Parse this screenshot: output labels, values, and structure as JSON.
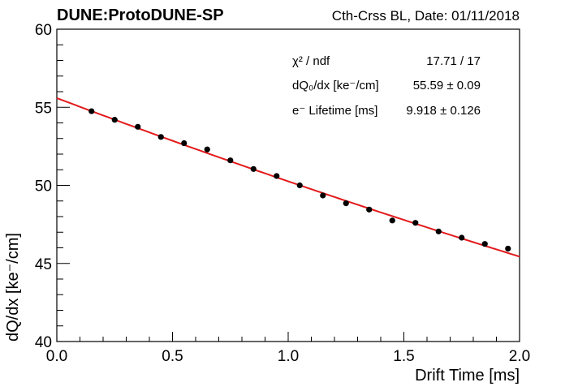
{
  "chart_data": {
    "type": "scatter",
    "title": "DUNE:ProtoDUNE-SP",
    "subtitle": "Cth-Crss BL, Date: 01/11/2018",
    "xlabel": "Drift Time [ms]",
    "ylabel": "dQ/dx [ke⁻/cm]",
    "xlim": [
      0.0,
      2.0
    ],
    "ylim": [
      40,
      60
    ],
    "xticks": [
      0.0,
      0.5,
      1.0,
      1.5,
      2.0
    ],
    "xtick_labels": [
      "0.0",
      "0.5",
      "1.0",
      "1.5",
      "2.0"
    ],
    "yticks": [
      40,
      45,
      50,
      55,
      60
    ],
    "ytick_labels": [
      "40",
      "45",
      "50",
      "55",
      "60"
    ],
    "grid": false,
    "series": [
      {
        "marker_color": "#000000",
        "x": [
          0.15,
          0.25,
          0.35,
          0.45,
          0.55,
          0.65,
          0.75,
          0.85,
          0.95,
          1.05,
          1.15,
          1.25,
          1.35,
          1.45,
          1.55,
          1.65,
          1.75,
          1.85,
          1.95
        ],
        "y": [
          54.75,
          54.2,
          53.75,
          53.1,
          52.7,
          52.3,
          51.6,
          51.05,
          50.6,
          50.0,
          49.35,
          48.85,
          48.45,
          47.75,
          47.6,
          47.05,
          46.65,
          46.25,
          45.95
        ]
      }
    ],
    "fit": {
      "type": "exponential",
      "color": "#e31a1c",
      "dQ0dx": 55.59,
      "lifetime_ms": 9.918,
      "x_range": [
        0.0,
        2.0
      ]
    },
    "stats_box": {
      "rows": [
        {
          "label": "χ² / ndf",
          "value": "17.71 / 17"
        },
        {
          "label": "dQ₀/dx [ke⁻/cm]",
          "value": "55.59 ± 0.09"
        },
        {
          "label": "e⁻ Lifetime [ms]",
          "value": "9.918 ± 0.126"
        }
      ]
    }
  }
}
